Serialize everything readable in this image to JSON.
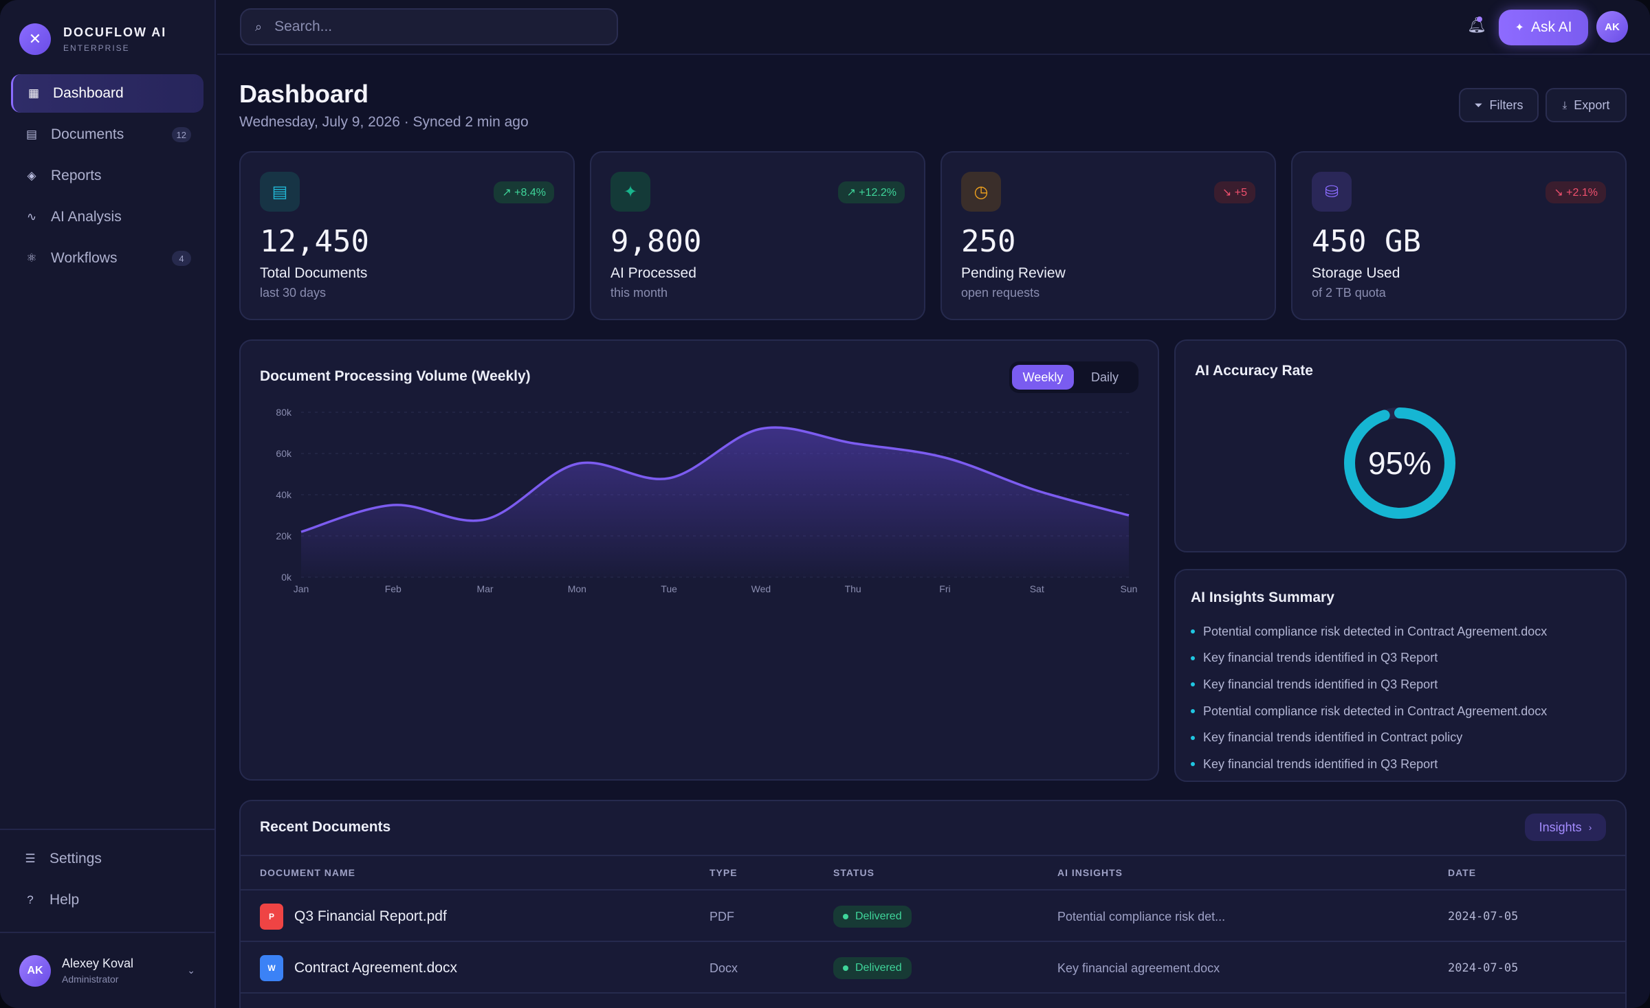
{
  "brand": {
    "name": "DOCUFLOW AI",
    "sub": "ENTERPRISE",
    "logo_icon": "sparkle-icon"
  },
  "nav": [
    {
      "label": "Dashboard",
      "icon": "grid-icon",
      "active": true
    },
    {
      "label": "Documents",
      "icon": "document-icon",
      "badge": "12"
    },
    {
      "label": "Reports",
      "icon": "layers-icon"
    },
    {
      "label": "AI Analysis",
      "icon": "pulse-icon"
    },
    {
      "label": "Workflows",
      "icon": "atom-icon",
      "badge": "4"
    }
  ],
  "sidebar_bottom": [
    {
      "label": "Settings",
      "icon": "sliders-icon"
    },
    {
      "label": "Help",
      "icon": "help-icon"
    }
  ],
  "user": {
    "initials": "AK",
    "name": "Alexey Koval",
    "role": "Administrator"
  },
  "topbar": {
    "search_placeholder": "Search...",
    "ask_label": "Ask AI",
    "avatar_initials": "AK"
  },
  "header": {
    "title": "Dashboard",
    "subtitle": "Wednesday, July 9, 2026 · Synced 2 min ago",
    "filters_label": "Filters",
    "export_label": "Export"
  },
  "stats": [
    {
      "value": "12,450",
      "label": "Total Documents",
      "sub": "last 30 days",
      "badge": "+8.4%",
      "trend": "up",
      "icon": "document-icon",
      "color": "#22b8d6"
    },
    {
      "value": "9,800",
      "label": "AI Processed",
      "sub": "this month",
      "badge": "+12.2%",
      "trend": "up",
      "icon": "sparkle-icon",
      "color": "#19b58c"
    },
    {
      "value": "250",
      "label": "Pending Review",
      "sub": "open requests",
      "badge": "+5",
      "trend": "down",
      "icon": "clock-icon",
      "color": "#f0a21e"
    },
    {
      "value": "450 GB",
      "label": "Storage Used",
      "sub": "of 2 TB quota",
      "badge": "+2.1%",
      "trend": "down",
      "icon": "database-icon",
      "color": "#8b6cff"
    }
  ],
  "volume_chart": {
    "toggle": [
      "Weekly",
      "Daily"
    ],
    "active_toggle": "Weekly"
  },
  "chart_data": {
    "type": "area",
    "title": "Document Processing Volume (Weekly)",
    "categories": [
      "Jan",
      "Feb",
      "Mar",
      "Mon",
      "Tue",
      "Wed",
      "Thu",
      "Fri",
      "Sat",
      "Sun"
    ],
    "values": [
      22000,
      35000,
      28000,
      55000,
      48000,
      72000,
      65000,
      58000,
      42000,
      30000
    ],
    "y_ticks": [
      "0k",
      "20k",
      "40k",
      "60k",
      "80k"
    ],
    "ylim": [
      0,
      80000
    ],
    "grid": true,
    "color": "#7c5cf0"
  },
  "accuracy": {
    "title": "AI Accuracy Rate",
    "value_label": "95%",
    "value": 0.95,
    "color": "#16b6d3"
  },
  "insights": {
    "title": "AI Insights Summary",
    "items": [
      "Potential compliance risk detected in Contract Agreement.docx",
      "Key financial trends identified in Q3 Report",
      "Key financial trends identified in Q3 Report",
      "Potential compliance risk detected in Contract Agreement.docx",
      "Key financial trends identified in Contract policy",
      "Key financial trends identified in Q3 Report"
    ]
  },
  "recent": {
    "title": "Recent Documents",
    "insights_label": "Insights",
    "columns": [
      "DOCUMENT NAME",
      "TYPE",
      "STATUS",
      "AI INSIGHTS",
      "DATE"
    ],
    "rows": [
      {
        "icon_letter": "P",
        "icon_color": "#ef4444",
        "name": "Q3 Financial Report.pdf",
        "type": "PDF",
        "status": "Delivered",
        "insight": "Potential compliance risk det...",
        "date": "2024-07-05"
      },
      {
        "icon_letter": "W",
        "icon_color": "#3b82f6",
        "name": "Contract Agreement.docx",
        "type": "Docx",
        "status": "Delivered",
        "insight": "Key financial agreement.docx",
        "date": "2024-07-05"
      }
    ]
  }
}
